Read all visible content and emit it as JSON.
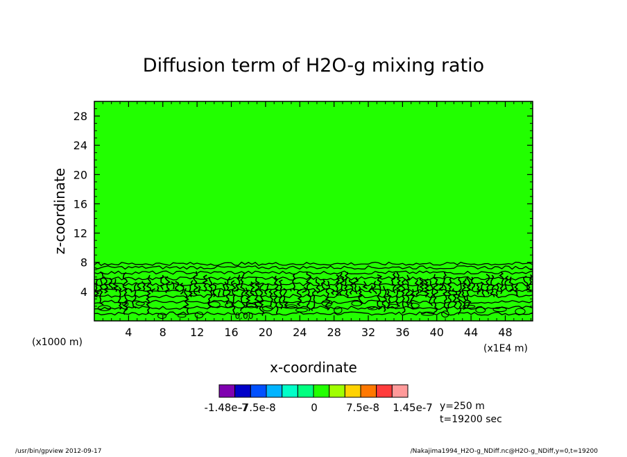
{
  "chart_data": {
    "type": "heatmap",
    "title": "Diffusion term of H2O-g mixing ratio",
    "xlabel": "x-coordinate",
    "ylabel": "z-coordinate",
    "xlim": [
      0,
      51.2
    ],
    "ylim": [
      0,
      30
    ],
    "x_ticks": [
      4,
      8,
      12,
      16,
      20,
      24,
      28,
      32,
      36,
      40,
      44,
      48
    ],
    "y_ticks": [
      4,
      8,
      12,
      16,
      20,
      24,
      28
    ],
    "y_unit": "(x1000 m)",
    "x_unit": "(x1E4 m)",
    "field_color": "#22ff00",
    "contour_color": "#000000",
    "contour_top": 7.8,
    "contour_levels_z": [
      1.0,
      1.8,
      2.6,
      3.4,
      4.2,
      5.0,
      5.8,
      6.6,
      7.3,
      7.8
    ],
    "contour_label": "0.00",
    "contour_label_pos": [
      17.5,
      0.3
    ],
    "colorbar": {
      "colors": [
        "#7f00b0",
        "#0000c8",
        "#0050ff",
        "#00b4ff",
        "#00ffc8",
        "#00ff80",
        "#22ff00",
        "#a0ff00",
        "#ffd200",
        "#ff7800",
        "#ff3c3c",
        "#ff9a9a"
      ],
      "labels": [
        "-1.48e-7",
        "-7.5e-8",
        "0",
        "7.5e-8",
        "1.45e-7"
      ]
    },
    "annotations": [
      "y=250 m",
      "t=19200 sec"
    ]
  },
  "footer": {
    "left": "/usr/bin/gpview   2012-09-17",
    "right": "/Nakajima1994_H2O-g_NDiff.nc@H2O-g_NDiff,y=0,t=19200"
  }
}
